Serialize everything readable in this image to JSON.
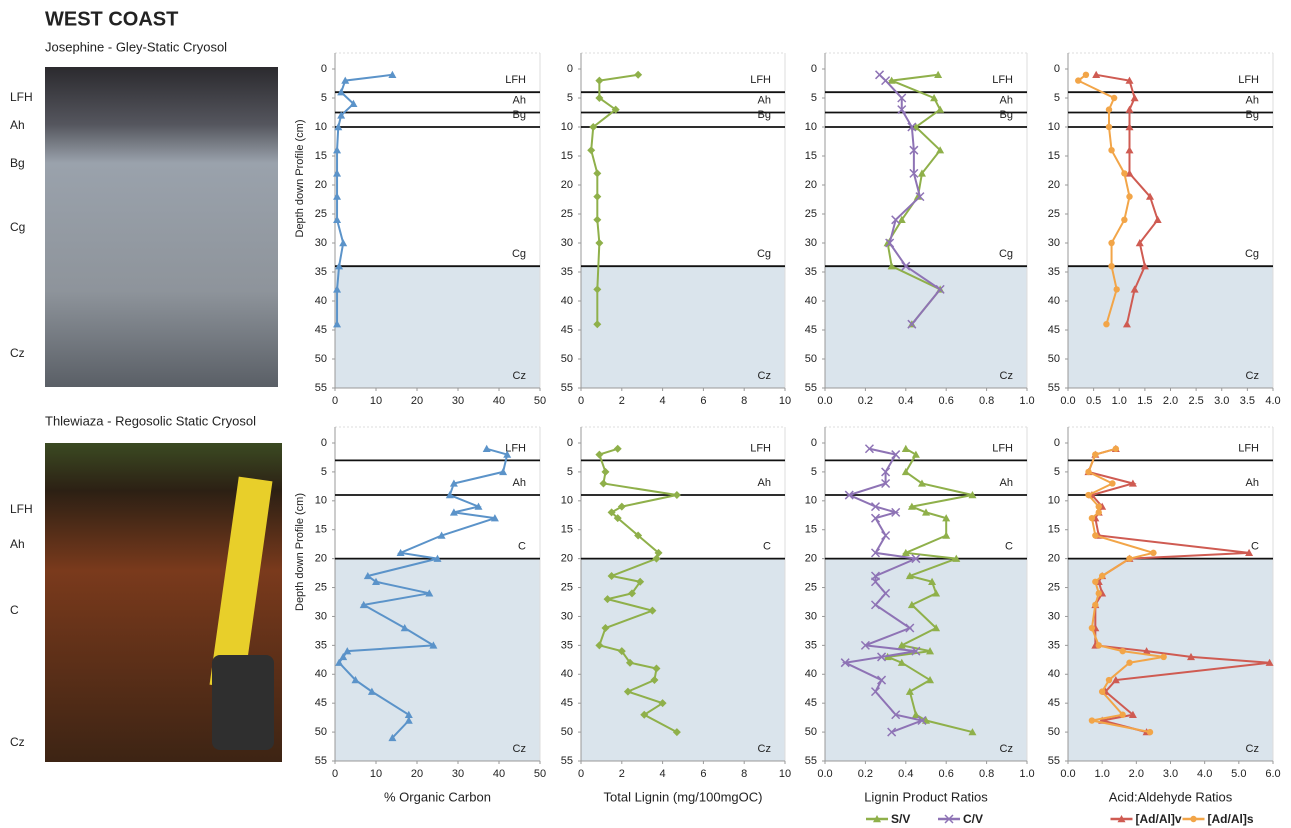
{
  "title": "WEST COAST",
  "sites": [
    {
      "name": "Josephine - Gley-Static Cryosol",
      "horizons": [
        "LFH",
        "Ah",
        "Bg",
        "Cg",
        "Cz"
      ]
    },
    {
      "name": "Thlewiaza - Regosolic Static Cryosol",
      "horizons": [
        "LFH",
        "Ah",
        "C",
        "Cz"
      ]
    }
  ],
  "chart_data": [
    {
      "type": "line",
      "ylabel": "Depth down Profile (cm)",
      "y_inverted": true,
      "ylim": [
        0,
        55
      ],
      "yticks": [
        0,
        5,
        10,
        15,
        20,
        25,
        30,
        35,
        40,
        45,
        50,
        55
      ],
      "xlim": [
        0,
        50
      ],
      "xticks": [
        0,
        10,
        20,
        30,
        40,
        50
      ],
      "horizons": [
        "LFH",
        "Ah",
        "Bg",
        "Cg",
        "Cz"
      ],
      "boundaries": [
        4,
        7.5,
        10,
        34
      ],
      "shade_below_last": true,
      "y": [
        1,
        2,
        4,
        6,
        8,
        10,
        14,
        18,
        22,
        26,
        30,
        34,
        38,
        44
      ],
      "series": [
        {
          "color": "#5b93c9",
          "marker": "triangle",
          "values": [
            14,
            2.5,
            1.5,
            4.5,
            1.5,
            0.8,
            0.5,
            0.5,
            0.5,
            0.5,
            2,
            1,
            0.5,
            0.5
          ]
        }
      ]
    },
    {
      "type": "line",
      "y_inverted": true,
      "ylim": [
        0,
        55
      ],
      "yticks": [
        0,
        5,
        10,
        15,
        20,
        25,
        30,
        35,
        40,
        45,
        50,
        55
      ],
      "xlim": [
        0,
        10
      ],
      "xticks": [
        0,
        2,
        4,
        6,
        8,
        10
      ],
      "horizons": [
        "LFH",
        "Ah",
        "Bg",
        "Cg",
        "Cz"
      ],
      "boundaries": [
        4,
        7.5,
        10,
        34
      ],
      "shade_below_last": true,
      "y": [
        1,
        2,
        5,
        7,
        10,
        14,
        18,
        22,
        26,
        30,
        38,
        44
      ],
      "series": [
        {
          "color": "#8fb04a",
          "marker": "diamond",
          "values": [
            2.8,
            0.9,
            0.9,
            1.7,
            0.6,
            0.5,
            0.8,
            0.8,
            0.8,
            0.9,
            0.8,
            0.8
          ]
        }
      ]
    },
    {
      "type": "line",
      "y_inverted": true,
      "ylim": [
        0,
        55
      ],
      "yticks": [
        0,
        5,
        10,
        15,
        20,
        25,
        30,
        35,
        40,
        45,
        50,
        55
      ],
      "xlim": [
        0,
        1
      ],
      "xticks": [
        {
          "value": 0,
          "label": "0.0"
        },
        0.2,
        0.4,
        0.6,
        0.8,
        {
          "value": 1,
          "label": "1.0"
        }
      ],
      "horizons": [
        "LFH",
        "Ah",
        "Bg",
        "Cg",
        "Cz"
      ],
      "boundaries": [
        4,
        7.5,
        10,
        34
      ],
      "shade_below_last": true,
      "y": [
        1,
        2,
        5,
        7,
        10,
        14,
        18,
        22,
        26,
        30,
        34,
        38,
        44
      ],
      "series": [
        {
          "color": "#8fb04a",
          "marker": "triangle",
          "values": [
            0.56,
            0.33,
            0.54,
            0.57,
            0.45,
            0.57,
            0.48,
            0.46,
            0.38,
            0.31,
            0.33,
            0.57,
            0.43
          ]
        },
        {
          "color": "#8e73b5",
          "marker": "x",
          "values": [
            0.27,
            0.3,
            0.38,
            0.38,
            0.43,
            0.44,
            0.44,
            0.47,
            0.35,
            0.32,
            0.4,
            0.57,
            0.43
          ]
        }
      ]
    },
    {
      "type": "line",
      "y_inverted": true,
      "ylim": [
        0,
        55
      ],
      "yticks": [
        0,
        5,
        10,
        15,
        20,
        25,
        30,
        35,
        40,
        45,
        50,
        55
      ],
      "xlim": [
        0,
        4
      ],
      "xticks": [
        {
          "value": 0,
          "label": "0.0"
        },
        0.5,
        {
          "value": 1,
          "label": "1.0"
        },
        1.5,
        {
          "value": 2,
          "label": "2.0"
        },
        2.5,
        {
          "value": 3,
          "label": "3.0"
        },
        3.5,
        {
          "value": 4,
          "label": "4.0"
        }
      ],
      "horizons": [
        "LFH",
        "Ah",
        "Bg",
        "Cg",
        "Cz"
      ],
      "boundaries": [
        4,
        7.5,
        10,
        34
      ],
      "shade_below_last": true,
      "y": [
        1,
        2,
        5,
        7,
        10,
        14,
        18,
        22,
        26,
        30,
        34,
        38,
        44
      ],
      "series": [
        {
          "color": "#cf5b52",
          "marker": "triangle",
          "values": [
            0.55,
            1.2,
            1.3,
            1.2,
            1.2,
            1.2,
            1.2,
            1.6,
            1.75,
            1.4,
            1.5,
            1.3,
            1.15
          ]
        },
        {
          "color": "#f2a548",
          "marker": "circle",
          "values": [
            0.35,
            0.2,
            0.9,
            0.8,
            0.8,
            0.85,
            1.1,
            1.2,
            1.1,
            0.85,
            0.85,
            0.95,
            0.75
          ]
        }
      ]
    },
    {
      "type": "line",
      "ylabel": "Depth down Profile (cm)",
      "xlabel": "% Organic Carbon",
      "y_inverted": true,
      "ylim": [
        0,
        55
      ],
      "yticks": [
        0,
        5,
        10,
        15,
        20,
        25,
        30,
        35,
        40,
        45,
        50,
        55
      ],
      "xlim": [
        0,
        50
      ],
      "xticks": [
        0,
        10,
        20,
        30,
        40,
        50
      ],
      "horizons": [
        "LFH",
        "Ah",
        "C",
        "Cz"
      ],
      "boundaries": [
        3,
        9,
        20
      ],
      "shade_below_last": true,
      "y": [
        1,
        2,
        5,
        7,
        9,
        11,
        12,
        13,
        16,
        19,
        20,
        23,
        24,
        26,
        28,
        32,
        35,
        36,
        37,
        38,
        41,
        43,
        47,
        48,
        51
      ],
      "series": [
        {
          "color": "#5b93c9",
          "marker": "triangle",
          "values": [
            37,
            42,
            41,
            29,
            28,
            35,
            29,
            39,
            26,
            16,
            25,
            8,
            10,
            23,
            7,
            17,
            24,
            3,
            2,
            1,
            5,
            9,
            18,
            18,
            14
          ]
        }
      ]
    },
    {
      "type": "line",
      "xlabel": "Total Lignin (mg/100mgOC)",
      "y_inverted": true,
      "ylim": [
        0,
        55
      ],
      "yticks": [
        0,
        5,
        10,
        15,
        20,
        25,
        30,
        35,
        40,
        45,
        50,
        55
      ],
      "xlim": [
        0,
        10
      ],
      "xticks": [
        0,
        2,
        4,
        6,
        8,
        10
      ],
      "horizons": [
        "LFH",
        "Ah",
        "C",
        "Cz"
      ],
      "boundaries": [
        3,
        9,
        20
      ],
      "shade_below_last": true,
      "y": [
        1,
        2,
        5,
        7,
        9,
        11,
        12,
        13,
        16,
        19,
        20,
        23,
        24,
        26,
        27,
        29,
        32,
        35,
        36,
        38,
        39,
        41,
        43,
        45,
        47,
        50
      ],
      "series": [
        {
          "color": "#8fb04a",
          "marker": "diamond",
          "values": [
            1.8,
            0.9,
            1.2,
            1.1,
            4.7,
            2,
            1.5,
            1.8,
            2.8,
            3.8,
            3.7,
            1.5,
            2.9,
            2.5,
            1.3,
            3.5,
            1.2,
            0.9,
            2,
            2.4,
            3.7,
            3.6,
            2.3,
            4,
            3.1,
            4.7
          ]
        }
      ]
    },
    {
      "type": "line",
      "xlabel": "Lignin Product Ratios",
      "legend": true,
      "y_inverted": true,
      "ylim": [
        0,
        55
      ],
      "yticks": [
        0,
        5,
        10,
        15,
        20,
        25,
        30,
        35,
        40,
        45,
        50,
        55
      ],
      "xlim": [
        0,
        1
      ],
      "xticks": [
        {
          "value": 0,
          "label": "0.0"
        },
        0.2,
        0.4,
        0.6,
        0.8,
        {
          "value": 1,
          "label": "1.0"
        }
      ],
      "horizons": [
        "LFH",
        "Ah",
        "C",
        "Cz"
      ],
      "boundaries": [
        3,
        9,
        20
      ],
      "shade_below_last": true,
      "y": [
        1,
        2,
        5,
        7,
        9,
        11,
        12,
        13,
        16,
        19,
        20,
        23,
        24,
        26,
        28,
        32,
        35,
        36,
        37,
        38,
        41,
        43,
        47,
        48,
        50
      ],
      "series": [
        {
          "name": "S/V",
          "color": "#8fb04a",
          "marker": "triangle",
          "values": [
            0.4,
            0.45,
            0.4,
            0.48,
            0.73,
            0.43,
            0.5,
            0.6,
            0.6,
            0.4,
            0.65,
            0.42,
            0.53,
            0.55,
            0.43,
            0.55,
            0.38,
            0.52,
            0.31,
            0.38,
            0.52,
            0.42,
            0.45,
            0.5,
            0.73
          ]
        },
        {
          "name": "C/V",
          "color": "#8e73b5",
          "marker": "x",
          "values": [
            0.22,
            0.35,
            0.3,
            0.3,
            0.12,
            0.25,
            0.35,
            0.25,
            0.3,
            0.25,
            0.45,
            0.25,
            0.25,
            0.3,
            0.25,
            0.42,
            0.2,
            0.45,
            0.28,
            0.1,
            0.28,
            0.25,
            0.35,
            0.48,
            0.33
          ]
        }
      ]
    },
    {
      "type": "line",
      "xlabel": "Acid:Aldehyde Ratios",
      "legend": true,
      "y_inverted": true,
      "ylim": [
        0,
        55
      ],
      "yticks": [
        0,
        5,
        10,
        15,
        20,
        25,
        30,
        35,
        40,
        45,
        50,
        55
      ],
      "xlim": [
        0,
        6
      ],
      "xticks": [
        {
          "value": 0,
          "label": "0.0"
        },
        {
          "value": 1,
          "label": "1.0"
        },
        {
          "value": 2,
          "label": "2.0"
        },
        {
          "value": 3,
          "label": "3.0"
        },
        {
          "value": 4,
          "label": "4.0"
        },
        {
          "value": 5,
          "label": "5.0"
        },
        {
          "value": 6,
          "label": "6.0"
        }
      ],
      "horizons": [
        "LFH",
        "Ah",
        "C",
        "Cz"
      ],
      "boundaries": [
        3,
        9,
        20
      ],
      "shade_below_last": true,
      "y": [
        1,
        2,
        5,
        7,
        9,
        11,
        12,
        13,
        16,
        19,
        20,
        23,
        24,
        26,
        28,
        32,
        35,
        36,
        37,
        38,
        41,
        43,
        47,
        48,
        50
      ],
      "series": [
        {
          "name": "[Ad/Al]v",
          "color": "#cf5b52",
          "marker": "triangle",
          "values": [
            1.4,
            0.8,
            0.6,
            1.9,
            0.7,
            1,
            0.9,
            0.8,
            0.9,
            5.3,
            1.8,
            1,
            0.9,
            1,
            0.8,
            0.8,
            0.8,
            2.3,
            3.6,
            5.9,
            1.4,
            1.1,
            1.9,
            1,
            2.3
          ]
        },
        {
          "name": "[Ad/Al]s",
          "color": "#f2a548",
          "marker": "circle",
          "values": [
            1.4,
            0.8,
            0.6,
            1.3,
            0.6,
            0.9,
            0.9,
            0.7,
            0.8,
            2.5,
            1.8,
            1,
            0.8,
            0.9,
            0.8,
            0.7,
            0.9,
            1.6,
            2.8,
            1.8,
            1.2,
            1,
            1.6,
            0.7,
            2.4
          ]
        }
      ]
    }
  ]
}
